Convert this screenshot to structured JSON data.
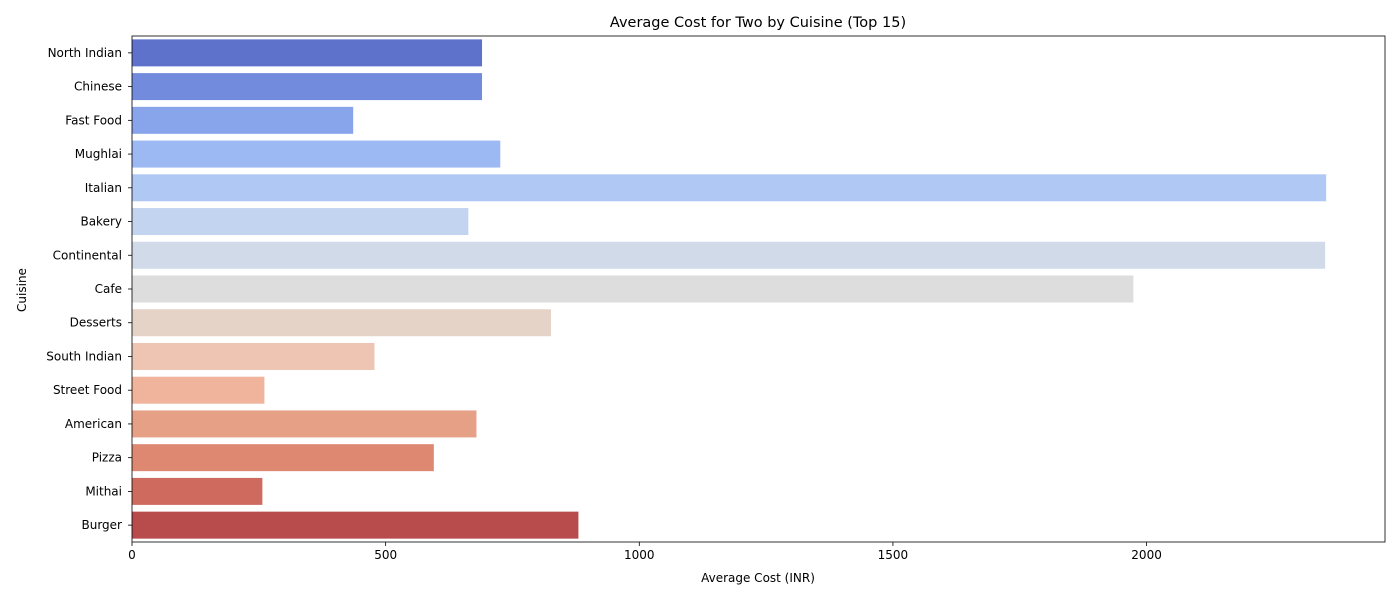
{
  "chart_data": {
    "type": "bar",
    "orientation": "horizontal",
    "title": "Average Cost for Two by Cuisine (Top 15)",
    "xlabel": "Average Cost (INR)",
    "ylabel": "Cuisine",
    "xlim": [
      0,
      2470
    ],
    "xticks": [
      0,
      500,
      1000,
      1500,
      2000
    ],
    "grid": false,
    "legend": "none",
    "categories": [
      "North Indian",
      "Chinese",
      "Fast Food",
      "Mughlai",
      "Italian",
      "Bakery",
      "Continental",
      "Cafe",
      "Desserts",
      "South Indian",
      "Street Food",
      "American",
      "Pizza",
      "Mithai",
      "Burger"
    ],
    "values": [
      690,
      690,
      436,
      726,
      2354,
      663,
      2352,
      1974,
      826,
      478,
      261,
      679,
      595,
      257,
      880
    ],
    "colors": [
      "#5e72cb",
      "#728bdc",
      "#88a4ea",
      "#9db9f4",
      "#afc8f4",
      "#c2d4f0",
      "#d0dae8",
      "#dddddd",
      "#e6d3c8",
      "#edc5b2",
      "#efb49b",
      "#e6a086",
      "#de8872",
      "#cf6a5f",
      "#b84b4c"
    ]
  }
}
